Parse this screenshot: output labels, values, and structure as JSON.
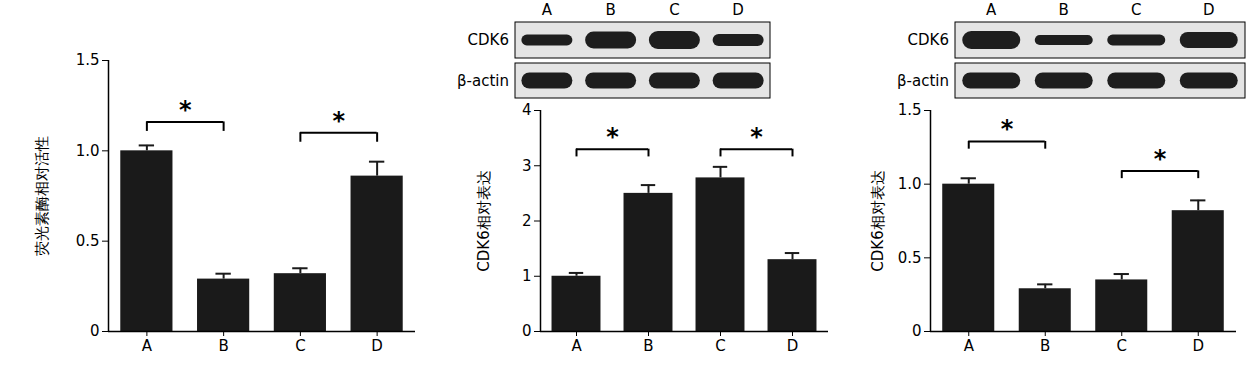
{
  "chart_data": [
    {
      "type": "bar",
      "ylabel": "荧光素酶相对活性",
      "categories": [
        "A",
        "B",
        "C",
        "D"
      ],
      "values": [
        1.0,
        0.29,
        0.32,
        0.86
      ],
      "errors": [
        0.03,
        0.03,
        0.03,
        0.08
      ],
      "color": "#1a1a1a",
      "grid": false,
      "ylim": [
        0,
        1.5
      ],
      "yticks": [
        0,
        0.5,
        {
          "value": 1,
          "label": "1.0"
        },
        1.5
      ],
      "significance": [
        {
          "from": "A",
          "to": "B",
          "y": 1.16,
          "label": "*"
        },
        {
          "from": "C",
          "to": "D",
          "y": 1.1,
          "label": "*"
        }
      ]
    },
    {
      "type": "bar",
      "ylabel": "CDK6相对表达",
      "categories": [
        "A",
        "B",
        "C",
        "D"
      ],
      "values": [
        1.0,
        2.5,
        2.78,
        1.3
      ],
      "errors": [
        0.06,
        0.15,
        0.2,
        0.12
      ],
      "color": "#1a1a1a",
      "grid": false,
      "ylim": [
        0,
        4
      ],
      "yticks": [
        0,
        1,
        2,
        3,
        4
      ],
      "significance": [
        {
          "from": "A",
          "to": "B",
          "y": 3.3,
          "label": "*"
        },
        {
          "from": "C",
          "to": "D",
          "y": 3.3,
          "label": "*"
        }
      ],
      "blot": {
        "lanes": [
          "A",
          "B",
          "C",
          "D"
        ],
        "rows": [
          "CDK6",
          "β-actin"
        ]
      }
    },
    {
      "type": "bar",
      "ylabel": "CDK6相对表达",
      "categories": [
        "A",
        "B",
        "C",
        "D"
      ],
      "values": [
        1.0,
        0.29,
        0.35,
        0.82
      ],
      "errors": [
        0.04,
        0.03,
        0.04,
        0.07
      ],
      "color": "#1a1a1a",
      "grid": false,
      "ylim": [
        0,
        1.5
      ],
      "yticks": [
        0,
        0.5,
        {
          "value": 1,
          "label": "1.0"
        },
        1.5
      ],
      "significance": [
        {
          "from": "A",
          "to": "B",
          "y": 1.29,
          "label": "*"
        },
        {
          "from": "C",
          "to": "D",
          "y": 1.09,
          "label": "*"
        }
      ],
      "blot": {
        "lanes": [
          "A",
          "B",
          "C",
          "D"
        ],
        "rows": [
          "CDK6",
          "β-actin"
        ]
      }
    }
  ]
}
